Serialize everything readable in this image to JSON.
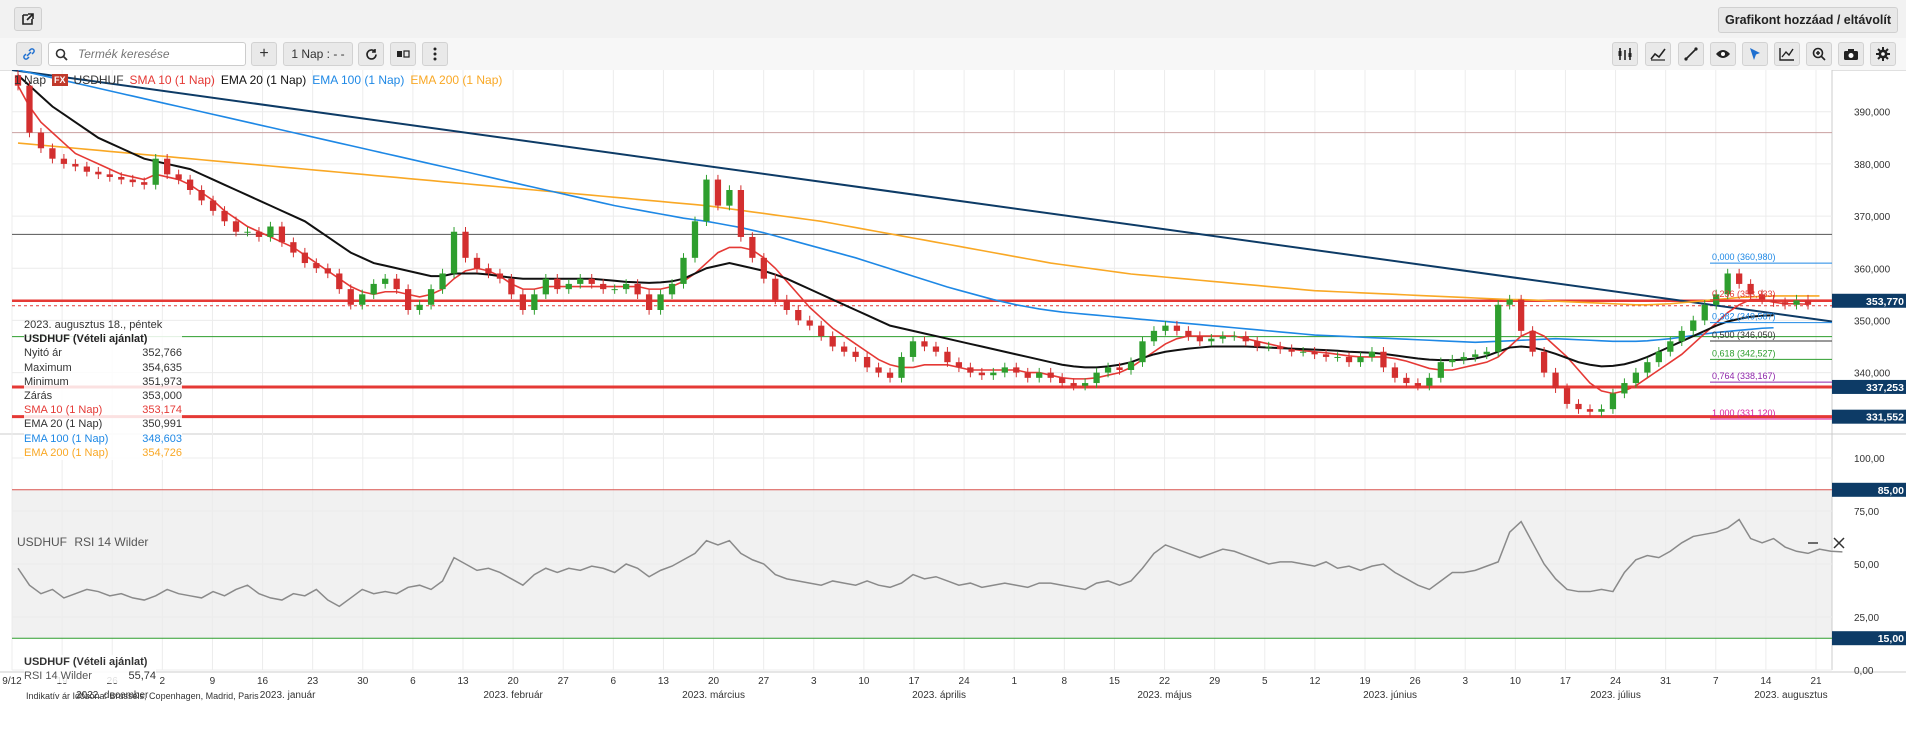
{
  "header": {
    "popout_icon": "external-link-icon",
    "add_chart_label": "Grafikont hozzáad / eltávolít"
  },
  "toolbar": {
    "link_icon": "link-icon",
    "search_placeholder": "Termék keresése",
    "add_icon": "plus-icon",
    "period_label": "1 Nap : - -",
    "refresh_icon": "refresh-icon",
    "chart_type_icon": "candles-icon",
    "more_icon": "vertical-dots-icon",
    "right_tools": [
      "indicators-icon",
      "studies-icon",
      "draw-line-icon",
      "eye-icon",
      "cursor-icon",
      "chart-type-icon",
      "zoom-icon",
      "camera-icon",
      "gear-icon"
    ]
  },
  "legend": {
    "period": "1 Nap",
    "fx_badge": "FX",
    "symbol": "USDHUF",
    "sma10": "SMA 10 (1 Nap)",
    "ema20": "EMA 20 (1 Nap)",
    "ema100": "EMA 100 (1 Nap)",
    "ema200": "EMA 200 (1 Nap)"
  },
  "colors": {
    "sma10": "#e53935",
    "ema20": "#111111",
    "ema100": "#1e88e5",
    "ema200": "#f9a825",
    "candle_up": "#2e9e2e",
    "candle_down": "#d32f2f",
    "trendline": "#0d3b66",
    "level_red": "#e53935",
    "fib_0": "#1e88e5",
    "fib_0618": "#2e9e2e",
    "fib_0764": "#8e24aa",
    "fib_1": "#d81b9b"
  },
  "infobox": {
    "date": "2023. augusztus 18., péntek",
    "title": "USDHUF (Vételi ajánlat)",
    "rows": [
      {
        "label": "Nyitó ár",
        "value": "352,766"
      },
      {
        "label": "Maximum",
        "value": "354,635"
      },
      {
        "label": "Minimum",
        "value": "351,973"
      },
      {
        "label": "Zárás",
        "value": "353,000"
      },
      {
        "label": "SMA 10 (1 Nap)",
        "value": "353,174"
      },
      {
        "label": "EMA 20 (1 Nap)",
        "value": "350,991"
      },
      {
        "label": "EMA 100 (1 Nap)",
        "value": "348,603"
      },
      {
        "label": "EMA 200 (1 Nap)",
        "value": "354,726"
      }
    ]
  },
  "price_badges": {
    "current": "353,770",
    "support1": "337,253",
    "support2": "331,552"
  },
  "fib_labels": {
    "f0": "0,000 (360,980)",
    "f0236": "0,236 (353,933)",
    "f0382": "0,382 (349,587)",
    "f05": "0,500 (346,050)",
    "f0618": "0,618 (342,527)",
    "f0764": "0,764 (338,167)",
    "f1": "1,000 (331,120)"
  },
  "rsi": {
    "title_symbol": "USDHUF",
    "title_indicator": "RSI 14 Wilder",
    "box_title": "USDHUF (Vételi ajánlat)",
    "box_label": "RSI 14 Wilder",
    "box_value": "55,74",
    "level_high": "85,00",
    "level_low": "15,00",
    "minimize_icon": "minus-icon",
    "close_icon": "close-icon"
  },
  "footer": {
    "note": "Indikatív ár   Időzóna: Brussels, Copenhagen, Madrid, Paris"
  },
  "chart_data": {
    "type": "candlestick",
    "symbol": "USDHUF",
    "ylim": [
      329,
      398
    ],
    "y_ticks": [
      "390,000",
      "380,000",
      "370,000",
      "360,000",
      "350,000",
      "340,000"
    ],
    "y_tick_values": [
      390,
      380,
      370,
      360,
      350,
      340
    ],
    "x_day_ticks": [
      "9/12",
      "19",
      "26",
      "2",
      "9",
      "16",
      "23",
      "30",
      "6",
      "13",
      "20",
      "27",
      "6",
      "13",
      "20",
      "27",
      "3",
      "10",
      "17",
      "24",
      "1",
      "8",
      "15",
      "22",
      "29",
      "5",
      "12",
      "19",
      "26",
      "3",
      "10",
      "17",
      "24",
      "31",
      "7",
      "14",
      "21"
    ],
    "x_month_labels": [
      "2022. december",
      "2023. január",
      "2023. február",
      "2023. március",
      "2023. április",
      "2023. május",
      "2023. június",
      "2023. július",
      "2023. augusztus"
    ],
    "candles_close": [
      395,
      386,
      383,
      381,
      380,
      379.5,
      378.5,
      378,
      377.5,
      377,
      376.5,
      376,
      381,
      378,
      377,
      375,
      373,
      371,
      369,
      367,
      367,
      366,
      368,
      365,
      363,
      361,
      360,
      359,
      356,
      353,
      355,
      357,
      358,
      356,
      352,
      353,
      356,
      359,
      367,
      362,
      360,
      359,
      358,
      355,
      352,
      355,
      358,
      356,
      357,
      358,
      357,
      356,
      356,
      357,
      355,
      352,
      355,
      357,
      362,
      369,
      377,
      372,
      375,
      366,
      362,
      358,
      354,
      352,
      350,
      349,
      347,
      345,
      344,
      343,
      341,
      340,
      339,
      343,
      346,
      345,
      344,
      342,
      341,
      340,
      339.5,
      340,
      341,
      340,
      339,
      340,
      339,
      338,
      337.5,
      338,
      340,
      341,
      340.5,
      342,
      346,
      348,
      349,
      348,
      347,
      346,
      346.5,
      347,
      347,
      346,
      345,
      345,
      344.5,
      344,
      344,
      343.5,
      343,
      343,
      342,
      343,
      344,
      341,
      339,
      338,
      337.5,
      339,
      342,
      342.5,
      343,
      343.5,
      344,
      353,
      354,
      348,
      344,
      340,
      337,
      334,
      333,
      332.5,
      333,
      336,
      338,
      340,
      342,
      344,
      346,
      348,
      350,
      353,
      355,
      359,
      357,
      355,
      354,
      353.5,
      353,
      354,
      353
    ],
    "sma10": [
      395,
      391,
      388,
      386,
      384,
      382,
      381,
      380,
      379,
      378,
      377.5,
      377,
      378,
      377.5,
      377,
      376,
      374.5,
      373,
      371,
      369.5,
      368,
      367,
      366,
      365,
      364,
      362.5,
      361,
      359.5,
      358,
      356.5,
      355.5,
      355,
      355.5,
      355.5,
      355,
      354.5,
      355,
      356,
      358,
      359.5,
      360,
      359.5,
      358.5,
      357,
      356,
      356,
      356.5,
      356.5,
      356.5,
      356.5,
      356.5,
      356.5,
      356.5,
      356.5,
      356.5,
      356,
      356,
      356.5,
      357.5,
      359,
      361,
      363,
      364,
      364,
      363.5,
      362,
      360,
      357.5,
      355,
      352.5,
      350.5,
      348.5,
      347,
      345.5,
      344,
      342.5,
      341.5,
      341,
      341,
      341.5,
      341.5,
      341.5,
      341,
      340.5,
      340.5,
      340.5,
      340.5,
      340.5,
      340,
      340,
      339.5,
      339,
      338.8,
      338.8,
      339,
      339.5,
      340,
      341,
      342.5,
      344,
      345.5,
      346.5,
      347,
      347,
      347,
      347,
      347,
      346.5,
      346,
      345.5,
      345,
      344.5,
      344.2,
      344,
      343.8,
      343.5,
      343.2,
      343,
      343,
      343,
      342.7,
      342.2,
      341.5,
      340.8,
      340.5,
      340.5,
      341,
      341.5,
      342,
      343,
      345,
      347,
      348,
      347,
      345,
      343,
      340.5,
      338,
      336.5,
      336,
      336.5,
      337.5,
      339,
      340.5,
      342,
      343.5,
      345.5,
      347.5,
      349.5,
      351.5,
      353,
      354,
      354,
      353.5,
      353.2,
      353.2,
      353.1
    ],
    "ema20": [
      397,
      395,
      393,
      391,
      389.5,
      388,
      386.5,
      385,
      384,
      383,
      382,
      381,
      380.5,
      380,
      379.5,
      379,
      378,
      377,
      376,
      375,
      374,
      373,
      372,
      371,
      370,
      369,
      367.5,
      366,
      364.5,
      363,
      362,
      361,
      360.5,
      360,
      359.5,
      359,
      358.5,
      358.5,
      359,
      359,
      359,
      358.8,
      358.5,
      358.2,
      358,
      358,
      358,
      358,
      358,
      358,
      358,
      357.8,
      357.6,
      357.4,
      357.3,
      357.2,
      357.3,
      357.5,
      358,
      359,
      360,
      360.5,
      361,
      360.5,
      360,
      359.5,
      358.8,
      358,
      357,
      356,
      355,
      354,
      353,
      352,
      351,
      350,
      349,
      348.5,
      348,
      347.5,
      347,
      346.5,
      346,
      345.5,
      345,
      344.5,
      344,
      343.5,
      343,
      342.5,
      342,
      341.5,
      341.2,
      341,
      341,
      341.2,
      341.5,
      342,
      342.8,
      343.5,
      344,
      344.3,
      344.6,
      344.8,
      345,
      345,
      345,
      345,
      344.9,
      344.8,
      344.7,
      344.6,
      344.5,
      344.4,
      344.3,
      344.2,
      344,
      343.9,
      343.8,
      343.6,
      343.3,
      343,
      342.7,
      342.5,
      342.4,
      342.4,
      342.5,
      342.7,
      343.2,
      344,
      344.8,
      345,
      344.8,
      344.3,
      343.6,
      342.8,
      342,
      341.5,
      341.2,
      341.3,
      341.6,
      342.2,
      343,
      344,
      345,
      346,
      347,
      348,
      349,
      349.8,
      350.3,
      350.7,
      350.9,
      351
    ],
    "ema100": [
      398,
      397.5,
      397,
      396.5,
      396,
      395.5,
      395,
      394.5,
      394,
      393.5,
      393,
      392.5,
      392,
      391.5,
      391,
      390.5,
      390,
      389.5,
      389,
      388.5,
      388,
      387.5,
      387,
      386.5,
      386,
      385.5,
      385,
      384.5,
      384,
      383.5,
      383,
      382.5,
      382,
      381.5,
      381,
      380.5,
      380,
      379.5,
      379,
      378.5,
      378,
      377.5,
      377,
      376.5,
      376,
      375.5,
      375,
      374.5,
      374,
      373.5,
      373,
      372.5,
      372,
      371.6,
      371.2,
      370.8,
      370.4,
      370,
      369.6,
      369.3,
      369,
      368.6,
      368.2,
      367.8,
      367.3,
      366.8,
      366.2,
      365.6,
      365,
      364.4,
      363.8,
      363.2,
      362.6,
      362,
      361.3,
      360.6,
      359.9,
      359.2,
      358.5,
      357.8,
      357.1,
      356.4,
      355.8,
      355.2,
      354.6,
      354,
      353.5,
      353,
      352.6,
      352.2,
      351.9,
      351.6,
      351.4,
      351.2,
      351,
      350.8,
      350.6,
      350.4,
      350.2,
      350,
      349.8,
      349.6,
      349.4,
      349.2,
      349,
      348.8,
      348.6,
      348.4,
      348.2,
      348,
      347.8,
      347.6,
      347.4,
      347.2,
      347.1,
      347,
      346.9,
      346.8,
      346.7,
      346.6,
      346.5,
      346.4,
      346.3,
      346.2,
      346.1,
      346,
      345.9,
      345.8,
      345.9,
      346,
      346.1,
      346.2,
      346.3,
      346.4,
      346.5,
      346.4,
      346.3,
      346.2,
      346.1,
      346,
      346,
      346,
      346.1,
      346.3,
      346.5,
      346.8,
      347.1,
      347.4,
      347.7,
      347.9,
      348.1,
      348.3,
      348.5,
      348.6
    ],
    "ema200": [
      384,
      383.8,
      383.6,
      383.4,
      383.2,
      383,
      382.8,
      382.6,
      382.4,
      382.2,
      382,
      381.8,
      381.6,
      381.4,
      381.2,
      381,
      380.8,
      380.6,
      380.4,
      380.2,
      380,
      379.8,
      379.6,
      379.4,
      379.2,
      379,
      378.8,
      378.6,
      378.4,
      378.2,
      378,
      377.8,
      377.6,
      377.4,
      377.2,
      377,
      376.8,
      376.6,
      376.4,
      376.2,
      376,
      375.8,
      375.6,
      375.4,
      375.2,
      375,
      374.8,
      374.6,
      374.4,
      374.2,
      374,
      373.8,
      373.6,
      373.4,
      373.2,
      373,
      372.8,
      372.6,
      372.4,
      372.2,
      372,
      371.7,
      371.4,
      371.1,
      370.8,
      370.5,
      370.2,
      369.9,
      369.6,
      369.3,
      369,
      368.6,
      368.2,
      367.8,
      367.4,
      367,
      366.6,
      366.2,
      365.8,
      365.4,
      365,
      364.6,
      364.2,
      363.8,
      363.4,
      363,
      362.6,
      362.2,
      361.8,
      361.4,
      361,
      360.7,
      360.4,
      360.1,
      359.8,
      359.5,
      359.2,
      358.9,
      358.7,
      358.5,
      358.3,
      358.1,
      357.9,
      357.7,
      357.5,
      357.3,
      357.1,
      356.9,
      356.7,
      356.5,
      356.3,
      356.1,
      355.9,
      355.7,
      355.6,
      355.5,
      355.4,
      355.3,
      355.2,
      355.1,
      355,
      354.9,
      354.8,
      354.7,
      354.6,
      354.5,
      354.4,
      354.3,
      354.2,
      354.1,
      354,
      354,
      353.9,
      353.8,
      353.7,
      353.6,
      353.5,
      353.4,
      353.3,
      353.2,
      353.1,
      353,
      353,
      353.1,
      353.2,
      353.4,
      353.6,
      353.8,
      354,
      354.2,
      354.4,
      354.5,
      354.6,
      354.7,
      354.7,
      354.7,
      354.7,
      354.7
    ],
    "horizontal_levels": [
      386,
      366.5,
      353.77,
      337.253,
      331.552,
      346.9
    ],
    "rsi_ylim": [
      0,
      100
    ],
    "rsi_y_ticks": [
      "100,00",
      "75,00",
      "50,00",
      "25,00",
      "0,00"
    ],
    "rsi_values": [
      48,
      40,
      36,
      38,
      34,
      36,
      38,
      37,
      35,
      36,
      34,
      33,
      35,
      38,
      36,
      35,
      34,
      37,
      35,
      38,
      40,
      36,
      34,
      33,
      36,
      35,
      38,
      33,
      30,
      34,
      38,
      36,
      37,
      36,
      39,
      40,
      38,
      42,
      53,
      50,
      47,
      48,
      46,
      43,
      40,
      45,
      48,
      46,
      48,
      47,
      49,
      48,
      46,
      50,
      48,
      44,
      47,
      49,
      52,
      55,
      61,
      59,
      61,
      55,
      52,
      50,
      45,
      43,
      42,
      41,
      40,
      42,
      41,
      40,
      42,
      40,
      39,
      41,
      45,
      43,
      44,
      42,
      40,
      41,
      39,
      40,
      41,
      40,
      39,
      41,
      41,
      40,
      39,
      38,
      41,
      42,
      40,
      42,
      48,
      55,
      59,
      57,
      55,
      53,
      55,
      57,
      56,
      54,
      52,
      50,
      51,
      51,
      50,
      49,
      51,
      48,
      49,
      47,
      49,
      50,
      46,
      43,
      40,
      38,
      42,
      46,
      46,
      47,
      49,
      51,
      65,
      70,
      60,
      50,
      43,
      38,
      37,
      37,
      38,
      37,
      46,
      52,
      54,
      53,
      56,
      60,
      63,
      64,
      65,
      67,
      71,
      62,
      60,
      62,
      58,
      56,
      55,
      57,
      56,
      55.7
    ]
  }
}
